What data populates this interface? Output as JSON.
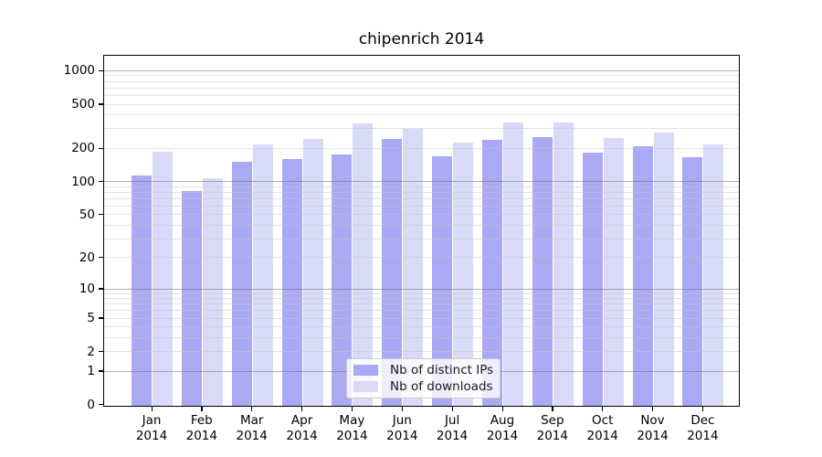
{
  "chart_data": {
    "type": "bar",
    "title": "chipenrich 2014",
    "categories": [
      "Jan 2014",
      "Feb 2014",
      "Mar 2014",
      "Apr 2014",
      "May 2014",
      "Jun 2014",
      "Jul 2014",
      "Aug 2014",
      "Sep 2014",
      "Oct 2014",
      "Nov 2014",
      "Dec 2014"
    ],
    "series": [
      {
        "name": "Nb of distinct IPs",
        "color": "#a9a9f4",
        "values": [
          113,
          82,
          151,
          161,
          177,
          245,
          171,
          240,
          254,
          184,
          208,
          168
        ]
      },
      {
        "name": "Nb of downloads",
        "color": "#d9d9f8",
        "values": [
          186,
          108,
          216,
          244,
          334,
          300,
          224,
          345,
          345,
          248,
          279,
          218
        ]
      }
    ],
    "yscale": "log1p",
    "yticks": [
      0,
      1,
      2,
      5,
      10,
      20,
      50,
      100,
      200,
      500,
      1000
    ],
    "major_gridlines": [
      1,
      10,
      100,
      1000
    ],
    "grid": true,
    "ylim": [
      0,
      1400
    ],
    "legend_position": "lower center",
    "axis_color": "#000000",
    "gridline_minor_color": "#cccccc",
    "gridline_major_color": "#737373"
  }
}
